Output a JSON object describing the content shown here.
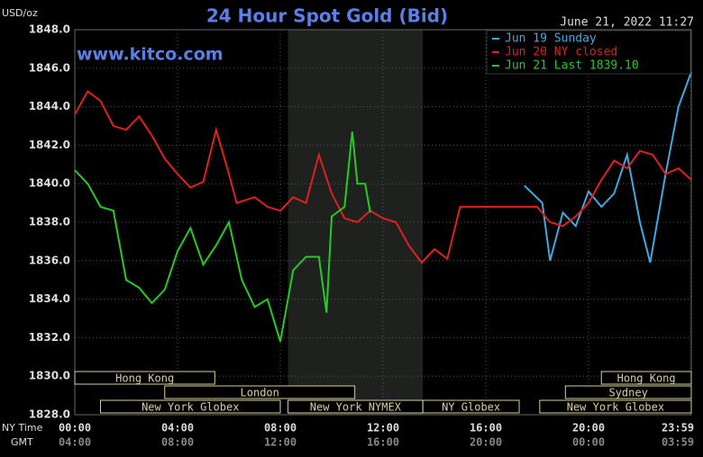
{
  "chart_data": {
    "type": "line",
    "title": "24 Hour Spot Gold (Bid)",
    "timestamp": "June 21, 2022 11:27",
    "watermark": "www.kitco.com",
    "y_label": "USD/oz",
    "x_row_labels": [
      "NY Time",
      "GMT"
    ],
    "xlim": [
      0,
      24
    ],
    "ylim": [
      1828,
      1848
    ],
    "xticks": [
      {
        "value": 0,
        "label": "00:00"
      },
      {
        "value": 4,
        "label": "04:00"
      },
      {
        "value": 8,
        "label": "08:00"
      },
      {
        "value": 12,
        "label": "12:00"
      },
      {
        "value": 16,
        "label": "16:00"
      },
      {
        "value": 20,
        "label": "20:00"
      },
      {
        "value": 23.98,
        "label": "23:59"
      }
    ],
    "gmt_labels": [
      "04:00",
      "08:00",
      "12:00",
      "16:00",
      "20:00",
      "00:00",
      "03:59"
    ],
    "yticks": [
      {
        "value": 1828,
        "label": "1828.0"
      },
      {
        "value": 1830,
        "label": "1830.0"
      },
      {
        "value": 1832,
        "label": "1832.0"
      },
      {
        "value": 1834,
        "label": "1834.0"
      },
      {
        "value": 1836,
        "label": "1836.0"
      },
      {
        "value": 1838,
        "label": "1838.0"
      },
      {
        "value": 1840,
        "label": "1840.0"
      },
      {
        "value": 1842,
        "label": "1842.0"
      },
      {
        "value": 1844,
        "label": "1844.0"
      },
      {
        "value": 1846,
        "label": "1846.0"
      },
      {
        "value": 1848,
        "label": "1848.0"
      }
    ],
    "grid": true,
    "highlight": [
      8.3,
      13.55
    ],
    "sessions": [
      [
        {
          "label": "Hong Kong",
          "start": 0,
          "end": 5.45
        },
        {
          "label": "Hong Kong",
          "start": 20.5,
          "end": 24
        }
      ],
      [
        {
          "label": "London",
          "start": 3.5,
          "end": 10.9
        },
        {
          "label": "Sydney",
          "start": 19.1,
          "end": 24
        }
      ],
      [
        {
          "label": "New York Globex",
          "start": 1,
          "end": 8
        },
        {
          "label": "New York NYMEX",
          "start": 8.3,
          "end": 13.55
        },
        {
          "label": "NY Globex",
          "start": 13.55,
          "end": 17.3
        },
        {
          "label": "New York Globex",
          "start": 18.1,
          "end": 24
        }
      ]
    ],
    "series": [
      {
        "name": "Jun 19 Sunday",
        "color": "#3fa9e0",
        "x": [
          17.5,
          18.2,
          18.5,
          19,
          19.5,
          20,
          20.5,
          21,
          21.5,
          22,
          22.4,
          23,
          23.5,
          24
        ],
        "values": [
          1839.9,
          1839.0,
          1836.0,
          1838.5,
          1837.8,
          1839.6,
          1838.8,
          1839.5,
          1841.5,
          1838.0,
          1835.9,
          1840.5,
          1844.0,
          1845.8
        ]
      },
      {
        "name": "Jun 20 NY closed",
        "color": "#e02020",
        "x": [
          0,
          0.5,
          1,
          1.5,
          2,
          2.5,
          3,
          3.5,
          4,
          4.5,
          5,
          5.5,
          6,
          6.3,
          7,
          7.5,
          8,
          8.5,
          9,
          9.5,
          10,
          10.5,
          11,
          11.5,
          12,
          12.5,
          13,
          13.5,
          14,
          14.5,
          15,
          16,
          17,
          18,
          18.5,
          19,
          19.5,
          20,
          20.5,
          21,
          21.5,
          22,
          22.5,
          23,
          23.5,
          24
        ],
        "values": [
          1843.6,
          1844.8,
          1844.3,
          1843.0,
          1842.8,
          1843.5,
          1842.5,
          1841.3,
          1840.5,
          1839.8,
          1840.1,
          1842.8,
          1840.5,
          1839.0,
          1839.3,
          1838.8,
          1838.6,
          1839.3,
          1839.0,
          1841.5,
          1839.5,
          1838.2,
          1838.0,
          1838.6,
          1838.2,
          1838.0,
          1836.8,
          1835.9,
          1836.6,
          1836.1,
          1838.8,
          1838.8,
          1838.8,
          1838.8,
          1838.0,
          1837.8,
          1838.3,
          1839.0,
          1840.2,
          1841.2,
          1840.8,
          1841.7,
          1841.5,
          1840.5,
          1840.8,
          1840.2
        ]
      },
      {
        "name": "Jun 21 Last 1839.10",
        "color": "#22cc22",
        "x": [
          0,
          0.5,
          1,
          1.5,
          2,
          2.5,
          3,
          3.5,
          4,
          4.5,
          5,
          5.5,
          6,
          6.5,
          7,
          7.5,
          8,
          8.5,
          9,
          9.5,
          9.8,
          10,
          10.5,
          10.8,
          11,
          11.3,
          11.5
        ],
        "values": [
          1840.7,
          1840.0,
          1838.8,
          1838.6,
          1835.0,
          1834.6,
          1833.8,
          1834.5,
          1836.5,
          1837.7,
          1835.8,
          1836.8,
          1838.0,
          1835.0,
          1833.6,
          1834.0,
          1831.8,
          1835.5,
          1836.2,
          1836.2,
          1833.3,
          1838.3,
          1838.8,
          1842.7,
          1840.0,
          1840.0,
          1838.5
        ]
      }
    ]
  }
}
